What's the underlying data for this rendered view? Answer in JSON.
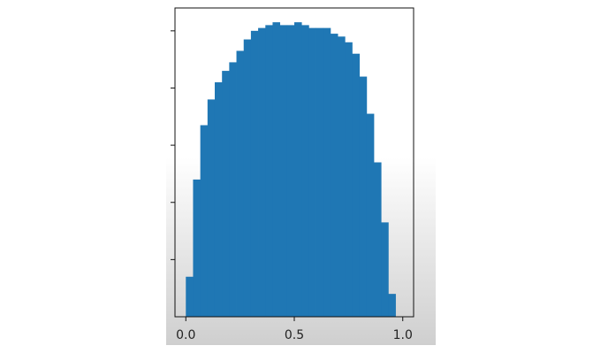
{
  "chart_data": {
    "type": "bar",
    "title": "",
    "xlabel": "",
    "ylabel": "",
    "xlim": [
      -0.05,
      1.05
    ],
    "ylim": [
      0,
      1.08
    ],
    "xticks": [
      {
        "value": 0.0,
        "label": "0.0"
      },
      {
        "value": 0.5,
        "label": "0.5"
      },
      {
        "value": 1.0,
        "label": "1.0"
      }
    ],
    "yticks": [
      0.2,
      0.4,
      0.6,
      0.8,
      1.0
    ],
    "ytick_labels_visible": false,
    "grid": false,
    "bar_color": "#1f77b4",
    "bin_width": 0.0333,
    "bin_starts": [
      0.0,
      0.0333,
      0.0667,
      0.1,
      0.1333,
      0.1667,
      0.2,
      0.2333,
      0.2667,
      0.3,
      0.3333,
      0.3667,
      0.4,
      0.4333,
      0.4667,
      0.5,
      0.5333,
      0.5667,
      0.6,
      0.6333,
      0.6667,
      0.7,
      0.7333,
      0.7667,
      0.8,
      0.8333,
      0.8667,
      0.9,
      0.9333,
      0.9667
    ],
    "values": [
      0.14,
      0.48,
      0.67,
      0.76,
      0.82,
      0.86,
      0.89,
      0.93,
      0.97,
      1.0,
      1.01,
      1.02,
      1.03,
      1.02,
      1.02,
      1.03,
      1.02,
      1.01,
      1.01,
      1.01,
      0.99,
      0.98,
      0.96,
      0.92,
      0.84,
      0.71,
      0.54,
      0.33,
      0.08,
      0.0
    ]
  }
}
